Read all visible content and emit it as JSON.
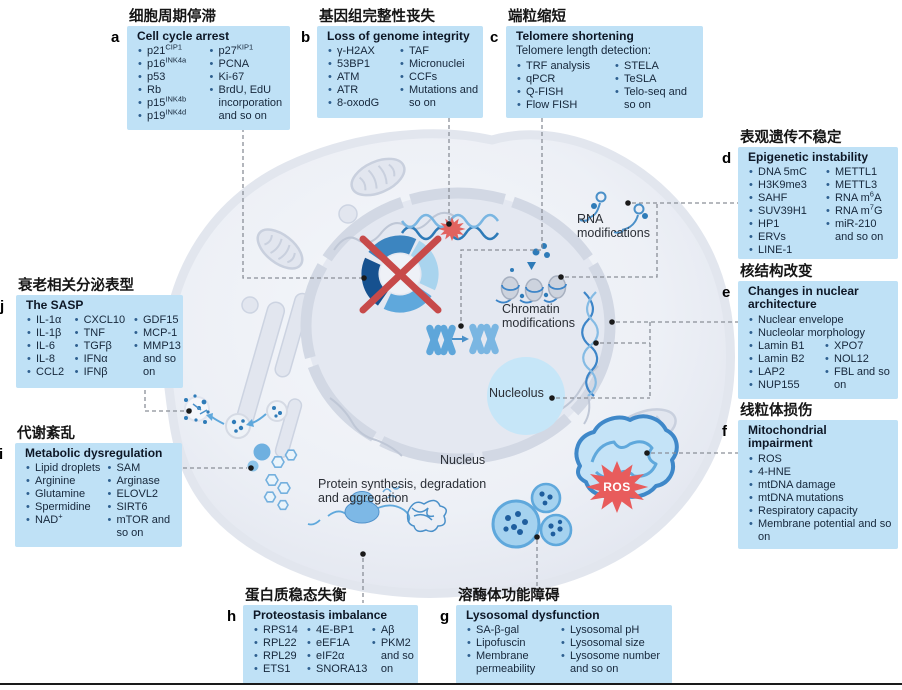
{
  "figure": {
    "colors": {
      "box_fill": "#bfe1f6",
      "bullet": "#2e5f8f",
      "text_dark": "#16273b",
      "connector_gray": "#8a8f98",
      "cross_red": "#c74a4a",
      "ros_red": "#e85c5c",
      "organelle_blue": "#5fa8dc",
      "cell_gray": "#e4e8f1"
    }
  },
  "boxes": [
    {
      "id": "a",
      "zh": "细胞周期停滞",
      "title": "Cell cycle arrest",
      "columns": [
        [
          "p21^{CIP1}",
          "p16^{INK4a}",
          "p53",
          "Rb",
          "p15^{INK4b}",
          "p19^{INK4d}"
        ],
        [
          "p27^{KIP1}",
          "PCNA",
          "Ki-67",
          "BrdU, EdU incorporation and so on"
        ]
      ]
    },
    {
      "id": "b",
      "zh": "基因组完整性丧失",
      "title": "Loss of genome integrity",
      "columns": [
        [
          "γ-H2AX",
          "53BP1",
          "ATM",
          "ATR",
          "8-oxodG"
        ],
        [
          "TAF",
          "Micronuclei",
          "CCFs",
          "Mutations and so on"
        ]
      ]
    },
    {
      "id": "c",
      "zh": "端粒缩短",
      "title": "Telomere shortening",
      "subtitle": "Telomere length detection:",
      "columns": [
        [
          "TRF analysis",
          "qPCR",
          "Q-FISH",
          "Flow FISH"
        ],
        [
          "STELA",
          "TeSLA",
          "Telo-seq and so on"
        ]
      ]
    },
    {
      "id": "d",
      "zh": "表观遗传不稳定",
      "title": "Epigenetic instability",
      "columns": [
        [
          "DNA 5mC",
          "H3K9me3",
          "SAHF",
          "SUV39H1",
          "HP1",
          "ERVs",
          "LINE-1"
        ],
        [
          "METTL1",
          "METTL3",
          "RNA m^{6}A",
          "RNA m^{7}G",
          "miR-210 and so on"
        ]
      ]
    },
    {
      "id": "e",
      "zh": "核结构改变",
      "title": "Changes in nuclear architecture",
      "full_items": [
        "Nuclear envelope",
        "Nucleolar morphology"
      ],
      "columns": [
        [
          "Lamin B1",
          "Lamin B2",
          "LAP2",
          "NUP155"
        ],
        [
          "XPO7",
          "NOL12",
          "FBL and so on"
        ]
      ]
    },
    {
      "id": "f",
      "zh": "线粒体损伤",
      "title": "Mitochondrial impairment",
      "full_items": [
        "ROS",
        "4-HNE",
        "mtDNA damage",
        "mtDNA mutations",
        "Respiratory capacity",
        "Membrane potential and so on"
      ]
    },
    {
      "id": "g",
      "zh": "溶酶体功能障碍",
      "title": "Lysosomal dysfunction",
      "columns": [
        [
          "SA-β-gal",
          "Lipofuscin",
          "Membrane permeability"
        ],
        [
          "Lysosomal pH",
          "Lysosomal size",
          "Lysosome number and so on"
        ]
      ]
    },
    {
      "id": "h",
      "zh": "蛋白质稳态失衡",
      "title": "Proteostasis imbalance",
      "columns": [
        [
          "RPS14",
          "RPL22",
          "RPL29",
          "ETS1"
        ],
        [
          "4E-BP1",
          "eEF1A",
          "eIF2α",
          "SNORA13"
        ],
        [
          "Aβ",
          "PKM2 and so on"
        ]
      ]
    },
    {
      "id": "i",
      "zh": "代谢紊乱",
      "title": "Metabolic dysregulation",
      "columns": [
        [
          "Lipid droplets",
          "Arginine",
          "Glutamine",
          "Spermidine",
          "NAD^{+}"
        ],
        [
          "SAM",
          "Arginase",
          "ELOVL2",
          "SIRT6",
          "mTOR and so on"
        ]
      ]
    },
    {
      "id": "j",
      "zh": "衰老相关分泌表型",
      "title": "The SASP",
      "columns": [
        [
          "IL-1α",
          "IL-1β",
          "IL-6",
          "IL-8",
          "CCL2"
        ],
        [
          "CXCL10",
          "TNF",
          "TGFβ",
          "IFNα",
          "IFNβ"
        ],
        [
          "GDF15",
          "MCP-1",
          "MMP13 and so on"
        ]
      ]
    }
  ],
  "cell_labels": {
    "rna": "RNA modifications",
    "chromatin": "Chromatin modifications",
    "nucleolus": "Nucleolus",
    "nucleus": "Nucleus",
    "protein": "Protein synthesis, degradation and aggregation",
    "ros": "ROS"
  }
}
